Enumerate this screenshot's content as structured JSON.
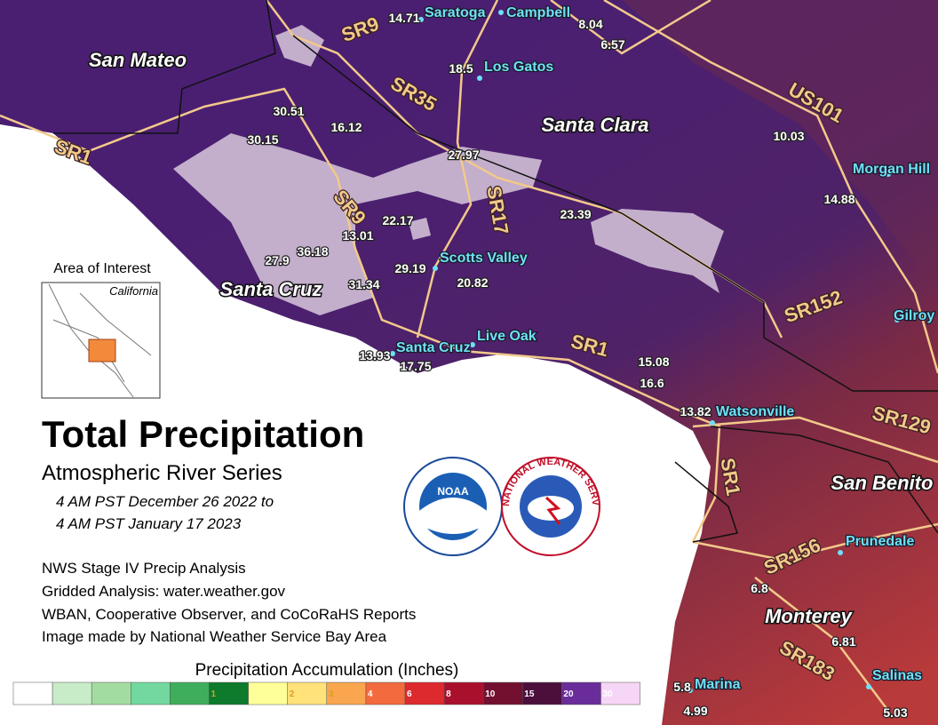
{
  "title": "Total Precipitation",
  "subtitle": "Atmospheric River Series",
  "period": [
    "4 AM PST December 26 2022 to",
    "4 AM PST January 17 2023"
  ],
  "credits": [
    "NWS Stage IV Precip Analysis",
    "Gridded Analysis: water.weather.gov",
    "WBAN, Cooperative Observer, and CoCoRaHS Reports",
    "Image made by National Weather Service Bay Area"
  ],
  "inset": {
    "label": "Area of Interest",
    "region": "California"
  },
  "logos": {
    "noaa": "NOAA",
    "nws": "NATIONAL WEATHER SERVICE"
  },
  "legend": {
    "title": "Precipitation Accumulation (Inches)",
    "colors": [
      "#ffffff",
      "#c8ebc8",
      "#a3dca0",
      "#72d8a0",
      "#3fae5c",
      "#0d7a2c",
      "#ffff99",
      "#ffe27a",
      "#f9a64f",
      "#f36a3e",
      "#dd2a2e",
      "#a8102c",
      "#731030",
      "#4c0f3c",
      "#6a2c9a",
      "#f6d6f6"
    ],
    "ticks": [
      1,
      2,
      3,
      4,
      6,
      8,
      10,
      15,
      20,
      30
    ]
  },
  "counties": [
    "San Mateo",
    "Santa Clara",
    "Santa Cruz",
    "San Benito",
    "Monterey"
  ],
  "routes": [
    "SR9",
    "SR35",
    "US101",
    "SR1",
    "SR9",
    "SR17",
    "SR152",
    "SR1",
    "SR129",
    "SR1",
    "SR156",
    "SR183"
  ],
  "cities": [
    "Saratoga",
    "Campbell",
    "Los Gatos",
    "Morgan Hill",
    "Scotts Valley",
    "Live Oak",
    "Santa Cruz",
    "Gilroy",
    "Watsonville",
    "Prunedale",
    "Marina",
    "Salinas"
  ],
  "observations": [
    14.71,
    8.04,
    6.57,
    18.5,
    30.51,
    16.12,
    30.15,
    10.03,
    27.97,
    14.88,
    23.39,
    22.17,
    13.01,
    27.9,
    36.18,
    29.19,
    20.82,
    31.34,
    15.08,
    16.6,
    13.93,
    17.75,
    13.82,
    6.8,
    6.81,
    5.8,
    4.99,
    5.03
  ]
}
